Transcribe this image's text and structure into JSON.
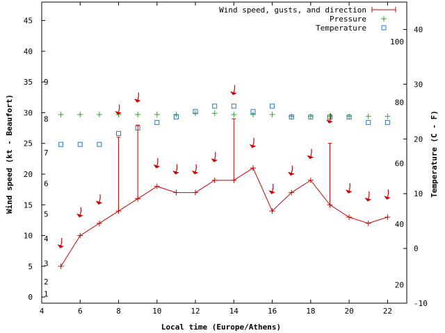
{
  "chart_data": {
    "type": "line",
    "xlabel": "Local time (Europe/Athens)",
    "ylabel_left": "Wind speed (kt - Beaufort)",
    "ylabel_right": "Temperature (C - F)",
    "xlim": [
      4,
      23
    ],
    "ylim_left": [
      -1,
      48
    ],
    "ylim_right_celsius": [
      -10,
      45
    ],
    "x_ticks": [
      "4",
      "6",
      "8",
      "10",
      "12",
      "14",
      "16",
      "18",
      "20",
      "22"
    ],
    "left_ticks": [
      "0",
      "5",
      "10",
      "15",
      "20",
      "25",
      "30",
      "35",
      "40",
      "45"
    ],
    "beaufort_labels": [
      "1",
      "2",
      "3",
      "4",
      "5",
      "6",
      "7",
      "8",
      "9"
    ],
    "celsius_ticks": [
      "-10",
      "0",
      "10",
      "20",
      "30",
      "40"
    ],
    "fahrenheit_ticks": [
      "20",
      "40",
      "60",
      "80",
      "100"
    ],
    "legend": {
      "position": "top-right",
      "wind": "Wind speed, gusts, and direction",
      "pressure": "Pressure",
      "temperature": "Temperature"
    },
    "colors": {
      "wind": "#cc0000",
      "pressure": "#22aa22",
      "temperature": "#2277cc"
    },
    "series": [
      {
        "name": "Wind speed",
        "x": [
          5,
          6,
          7,
          8,
          9,
          10,
          11,
          12,
          13,
          14,
          15,
          16,
          17,
          18,
          19,
          20,
          21,
          22
        ],
        "values": [
          5,
          10,
          12,
          14,
          16,
          18,
          17,
          17,
          19,
          19,
          21,
          14,
          17,
          19,
          15,
          13,
          12,
          13
        ]
      },
      {
        "name": "Gusts",
        "x": [
          8,
          9,
          14,
          19
        ],
        "values": [
          26,
          28,
          29,
          25
        ]
      },
      {
        "name": "Pressure",
        "x": [
          5,
          6,
          7,
          8,
          9,
          10,
          11,
          12,
          13,
          14,
          15,
          16,
          17,
          18,
          19,
          20,
          21,
          22
        ],
        "values": [
          29.7,
          29.7,
          29.7,
          29.7,
          29.7,
          29.7,
          29.7,
          29.9,
          29.9,
          29.7,
          29.7,
          29.7,
          29.4,
          29.4,
          29.4,
          29.4,
          29.4,
          29.4
        ]
      },
      {
        "name": "Temperature",
        "x": [
          5,
          6,
          7,
          8,
          9,
          10,
          11,
          12,
          13,
          14,
          15,
          16,
          17,
          18,
          19,
          20,
          21,
          22
        ],
        "values": [
          19,
          19,
          19,
          21,
          22,
          23,
          24,
          25,
          26,
          26,
          25,
          26,
          24,
          24,
          24,
          24,
          23,
          23
        ]
      },
      {
        "name": "Wind direction arrows",
        "x": [
          5,
          6,
          7,
          8,
          9,
          10,
          11,
          12,
          13,
          14,
          15,
          16,
          17,
          18,
          19,
          20,
          21,
          22
        ],
        "y": [
          8.7,
          13.7,
          15.8,
          30.4,
          32.4,
          21.7,
          20.7,
          20.7,
          22.7,
          33.6,
          25.0,
          17.5,
          20.5,
          23.2,
          29.0,
          17.6,
          16.3,
          16.6
        ]
      }
    ]
  }
}
